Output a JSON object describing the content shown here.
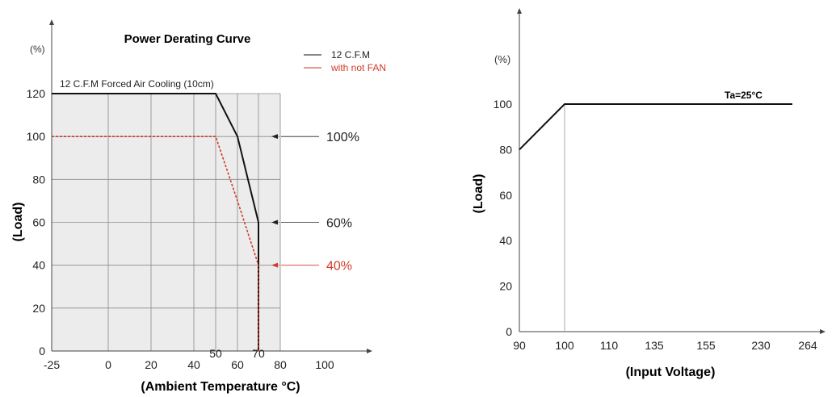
{
  "chart_data": [
    {
      "type": "line",
      "title": "Power Derating Curve",
      "xlabel": "(Ambient Temperature °C)",
      "ylabel": "(Load)",
      "yunit": "(%)",
      "note": "12 C.F.M Forced Air Cooling (10cm)",
      "xticks": [
        "-25",
        "0",
        "20",
        "40",
        "50",
        "60",
        "70",
        "80",
        "100"
      ],
      "yticks": [
        "0",
        "20",
        "40",
        "60",
        "80",
        "100",
        "120"
      ],
      "xlim": [
        -25,
        100
      ],
      "ylim": [
        0,
        120
      ],
      "legend_position": "top-right",
      "series": [
        {
          "name": "12 C.F.M",
          "color": "#111111",
          "style": "solid",
          "points": [
            [
              -25,
              120
            ],
            [
              50,
              120
            ],
            [
              60,
              100
            ],
            [
              70,
              60
            ],
            [
              70,
              0
            ]
          ]
        },
        {
          "name": "with not FAN",
          "color": "#d23a2a",
          "style": "dashed",
          "points": [
            [
              -25,
              100
            ],
            [
              50,
              100
            ],
            [
              60,
              70
            ],
            [
              70,
              40
            ],
            [
              70,
              0
            ]
          ]
        }
      ],
      "annotations": [
        {
          "y": 100,
          "label": "100%",
          "color": "#222222"
        },
        {
          "y": 60,
          "label": "60%",
          "color": "#222222"
        },
        {
          "y": 40,
          "label": "40%",
          "color": "#d23a2a"
        }
      ]
    },
    {
      "type": "line",
      "xlabel": "(Input Voltage)",
      "ylabel": "(Load)",
      "yunit": "(%)",
      "xticks": [
        "90",
        "100",
        "110",
        "135",
        "155",
        "230",
        "264"
      ],
      "yticks": [
        "0",
        "20",
        "40",
        "60",
        "80",
        "100"
      ],
      "ylim": [
        0,
        100
      ],
      "series": [
        {
          "name": "Ta=25°C",
          "color": "#111111",
          "points": [
            [
              "90",
              80
            ],
            [
              "100",
              100
            ],
            [
              "264",
              100
            ]
          ]
        }
      ]
    }
  ]
}
